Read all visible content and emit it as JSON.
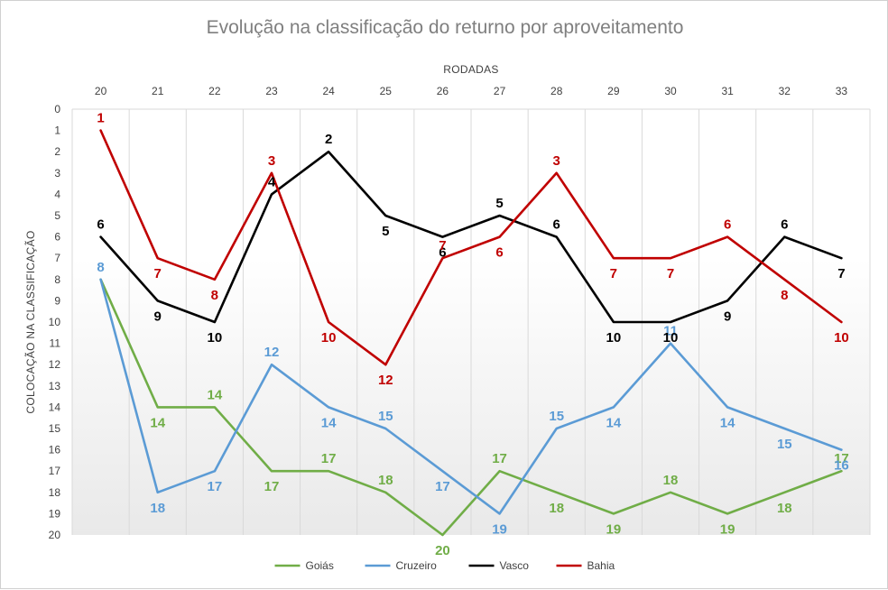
{
  "chart_data": {
    "type": "line",
    "title": "Evolução na classificação do returno por aproveitamento",
    "xlabel": "RODADAS",
    "ylabel": "COLOCAÇÃO NA CLASSIFICAÇÃO",
    "x": [
      20,
      21,
      22,
      23,
      24,
      25,
      26,
      27,
      28,
      29,
      30,
      31,
      32,
      33
    ],
    "ylim": [
      0,
      20
    ],
    "y_ticks": [
      0,
      1,
      2,
      3,
      4,
      5,
      6,
      7,
      8,
      9,
      10,
      11,
      12,
      13,
      14,
      15,
      16,
      17,
      18,
      19,
      20
    ],
    "y_inverted": true,
    "x_axis_position": "top",
    "legend_position": "bottom",
    "series": [
      {
        "name": "Goiás",
        "color": "#70ad47",
        "values": [
          8,
          14,
          14,
          17,
          17,
          18,
          20,
          17,
          18,
          19,
          18,
          19,
          18,
          17
        ],
        "label_values": [
          null,
          14,
          14,
          17,
          17,
          18,
          20,
          17,
          18,
          19,
          18,
          19,
          18,
          17
        ]
      },
      {
        "name": "Cruzeiro",
        "color": "#5b9bd5",
        "values": [
          8,
          18,
          17,
          12,
          14,
          15,
          17,
          19,
          15,
          14,
          11,
          14,
          15,
          16
        ],
        "label_values": [
          8,
          18,
          17,
          12,
          14,
          15,
          17,
          19,
          15,
          14,
          11,
          14,
          15,
          16
        ]
      },
      {
        "name": "Vasco",
        "color": "#000000",
        "values": [
          6,
          9,
          10,
          4,
          2,
          5,
          6,
          5,
          6,
          10,
          10,
          9,
          6,
          7
        ],
        "label_values": [
          6,
          9,
          10,
          4,
          2,
          5,
          6,
          5,
          6,
          10,
          10,
          9,
          6,
          7
        ]
      },
      {
        "name": "Bahia",
        "color": "#c00000",
        "values": [
          1,
          7,
          8,
          3,
          10,
          12,
          7,
          6,
          3,
          7,
          7,
          6,
          8,
          10
        ],
        "label_values": [
          1,
          7,
          8,
          3,
          10,
          12,
          7,
          6,
          3,
          7,
          7,
          6,
          8,
          10
        ]
      }
    ]
  }
}
